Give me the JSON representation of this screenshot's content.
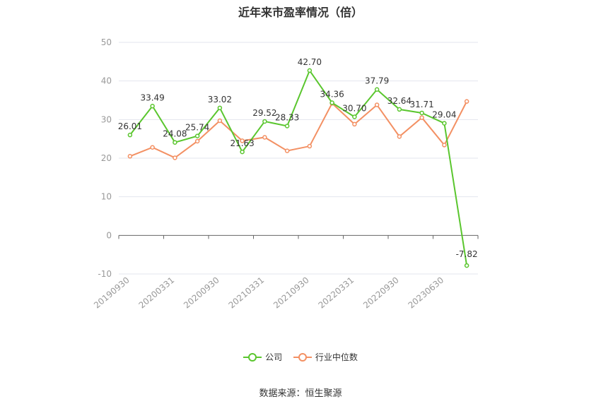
{
  "chart_data": {
    "type": "line",
    "title": "近年来市盈率情况（倍）",
    "source": "数据来源：恒生聚源",
    "ylim": [
      -10,
      50
    ],
    "yticks": [
      -10,
      0,
      10,
      20,
      30,
      40,
      50
    ],
    "x_tick_labels": [
      "20190930",
      "20200331",
      "20200930",
      "20210331",
      "20210930",
      "20220331",
      "20220930",
      "20230630"
    ],
    "point_count": 16,
    "series": [
      {
        "name": "公司",
        "color": "#5ac62e",
        "values": [
          26.01,
          33.49,
          24.08,
          25.74,
          33.02,
          21.63,
          29.52,
          28.33,
          42.7,
          34.36,
          30.7,
          37.79,
          32.64,
          31.71,
          29.04,
          -7.82
        ],
        "labels": [
          "26.01",
          "33.49",
          "24.08",
          "25.74",
          "33.02",
          "21.63",
          "29.52",
          "28.33",
          "42.70",
          "34.36",
          "30.70",
          "37.79",
          "32.64",
          "31.71",
          "29.04",
          "-7.82"
        ]
      },
      {
        "name": "行业中位数",
        "color": "#f39063",
        "values": [
          20.5,
          22.8,
          20.1,
          24.4,
          29.7,
          24.5,
          25.4,
          21.9,
          23.1,
          34.2,
          28.8,
          33.8,
          25.6,
          30.5,
          23.4,
          34.7
        ]
      }
    ],
    "grid": true,
    "legend_position": "bottom-center"
  }
}
